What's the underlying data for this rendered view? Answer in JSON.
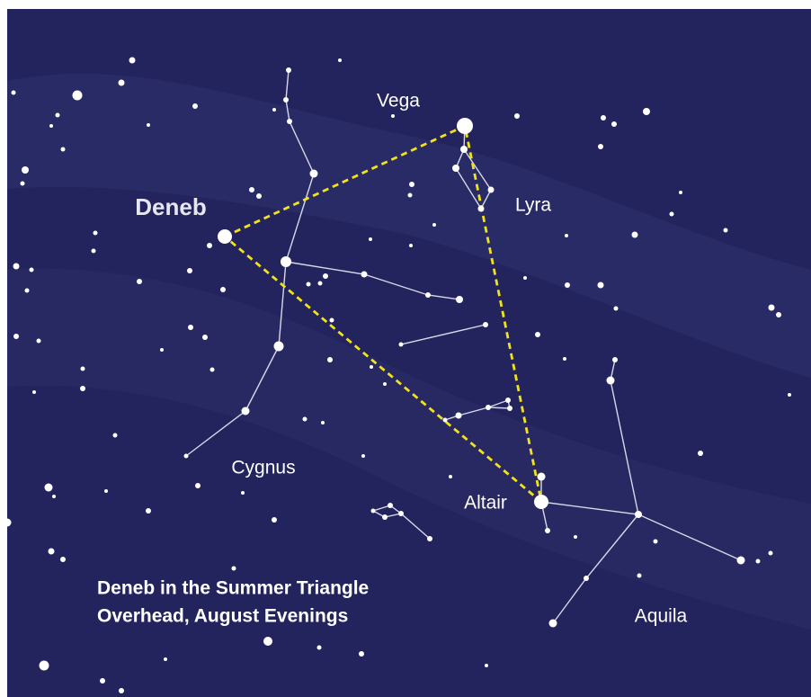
{
  "stars": {
    "deneb": "Deneb",
    "vega": "Vega",
    "altair": "Altair"
  },
  "constellations": {
    "lyra": "Lyra",
    "cygnus": "Cygnus",
    "aquila": "Aquila"
  },
  "caption": {
    "line1": "Deneb in the Summer Triangle",
    "line2": "Overhead, August Evenings"
  }
}
